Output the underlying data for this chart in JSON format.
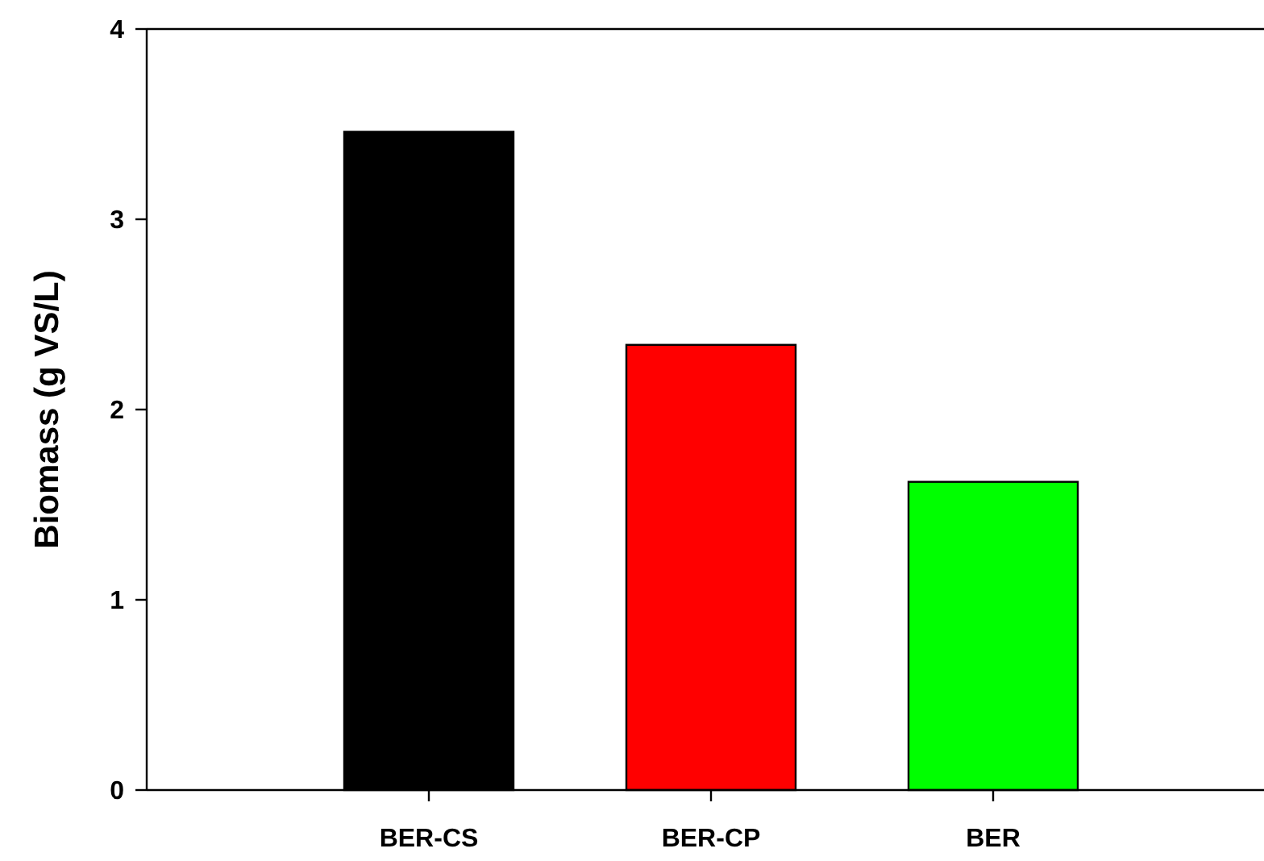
{
  "chart_data": {
    "type": "bar",
    "ylabel": "Biomass (g VS/L)",
    "categories": [
      "BER-CS",
      "BER-CP",
      "BER"
    ],
    "values": [
      3.46,
      2.34,
      1.62
    ],
    "colors": [
      "#000000",
      "#ff0000",
      "#00ff00"
    ],
    "ylim": [
      0,
      4
    ],
    "yticks": [
      0,
      1,
      2,
      3,
      4
    ],
    "grid": false
  }
}
